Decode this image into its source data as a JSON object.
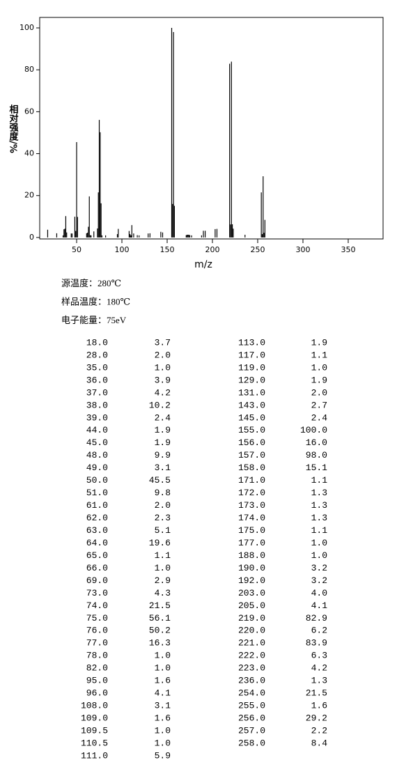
{
  "chart_data": {
    "type": "bar",
    "x_label": "m/z",
    "y_label": "相对强度/%",
    "x": [
      18,
      28,
      35,
      36,
      37,
      38,
      39,
      44,
      45,
      48,
      49,
      50,
      51,
      61,
      62,
      63,
      64,
      65,
      66,
      69,
      73,
      74,
      75,
      76,
      77,
      78,
      82,
      95,
      96,
      108,
      109,
      109.5,
      110.5,
      111,
      113,
      117,
      119,
      129,
      131,
      143,
      145,
      155,
      156,
      157,
      158,
      171,
      172,
      173,
      174,
      175,
      177,
      188,
      190,
      192,
      203,
      205,
      219,
      220,
      221,
      222,
      223,
      236,
      254,
      255,
      256,
      257,
      258
    ],
    "values": [
      3.7,
      2.0,
      1.0,
      3.9,
      4.2,
      10.2,
      2.4,
      1.9,
      1.9,
      9.9,
      3.1,
      45.5,
      9.8,
      2.0,
      2.3,
      5.1,
      19.6,
      1.1,
      1.0,
      2.9,
      4.3,
      21.5,
      56.1,
      50.2,
      16.3,
      1.0,
      1.0,
      1.6,
      4.1,
      3.1,
      1.6,
      1.0,
      1.0,
      5.9,
      1.9,
      1.1,
      1.0,
      1.9,
      2.0,
      2.7,
      2.4,
      100.0,
      16.0,
      98.0,
      15.1,
      1.1,
      1.3,
      1.3,
      1.3,
      1.1,
      1.0,
      1.0,
      3.2,
      3.2,
      4.0,
      4.1,
      82.9,
      6.2,
      83.9,
      6.3,
      4.2,
      1.3,
      21.5,
      1.6,
      29.2,
      2.2,
      8.4
    ],
    "color": "#000000",
    "xlim": [
      9.2,
      388.5
    ],
    "xticks": [
      50,
      100,
      150,
      200,
      250,
      300,
      350
    ],
    "ylim": [
      -0.7,
      105
    ],
    "yticks": [
      0,
      20,
      40,
      60,
      80,
      100
    ]
  },
  "conditions": [
    "源温度：280℃",
    "样品温度：180℃",
    "电子能量：75eV"
  ],
  "table": {
    "columns": [
      {
        "mz": [
          "18.0",
          "28.0",
          "35.0",
          "36.0",
          "37.0",
          "38.0",
          "39.0",
          "44.0",
          "45.0",
          "48.0",
          "49.0",
          "50.0",
          "51.0",
          "61.0",
          "62.0",
          "63.0",
          "64.0",
          "65.0",
          "66.0",
          "69.0",
          "73.0",
          "74.0",
          "75.0",
          "76.0",
          "77.0",
          "78.0",
          "82.0",
          "95.0",
          "96.0",
          "108.0",
          "109.0",
          "109.5",
          "110.5",
          "111.0"
        ],
        "intensity": [
          "3.7",
          "2.0",
          "1.0",
          "3.9",
          "4.2",
          "10.2",
          "2.4",
          "1.9",
          "1.9",
          "9.9",
          "3.1",
          "45.5",
          "9.8",
          "2.0",
          "2.3",
          "5.1",
          "19.6",
          "1.1",
          "1.0",
          "2.9",
          "4.3",
          "21.5",
          "56.1",
          "50.2",
          "16.3",
          "1.0",
          "1.0",
          "1.6",
          "4.1",
          "3.1",
          "1.6",
          "1.0",
          "1.0",
          "5.9"
        ]
      },
      {
        "mz": [
          "113.0",
          "117.0",
          "119.0",
          "129.0",
          "131.0",
          "143.0",
          "145.0",
          "155.0",
          "156.0",
          "157.0",
          "158.0",
          "171.0",
          "172.0",
          "173.0",
          "174.0",
          "175.0",
          "177.0",
          "188.0",
          "190.0",
          "192.0",
          "203.0",
          "205.0",
          "219.0",
          "220.0",
          "221.0",
          "222.0",
          "223.0",
          "236.0",
          "254.0",
          "255.0",
          "256.0",
          "257.0",
          "258.0"
        ],
        "intensity": [
          "1.9",
          "1.1",
          "1.0",
          "1.9",
          "2.0",
          "2.7",
          "2.4",
          "100.0",
          "16.0",
          "98.0",
          "15.1",
          "1.1",
          "1.3",
          "1.3",
          "1.3",
          "1.1",
          "1.0",
          "1.0",
          "3.2",
          "3.2",
          "4.0",
          "4.1",
          "82.9",
          "6.2",
          "83.9",
          "6.3",
          "4.2",
          "1.3",
          "21.5",
          "1.6",
          "29.2",
          "2.2",
          "8.4"
        ]
      }
    ]
  }
}
